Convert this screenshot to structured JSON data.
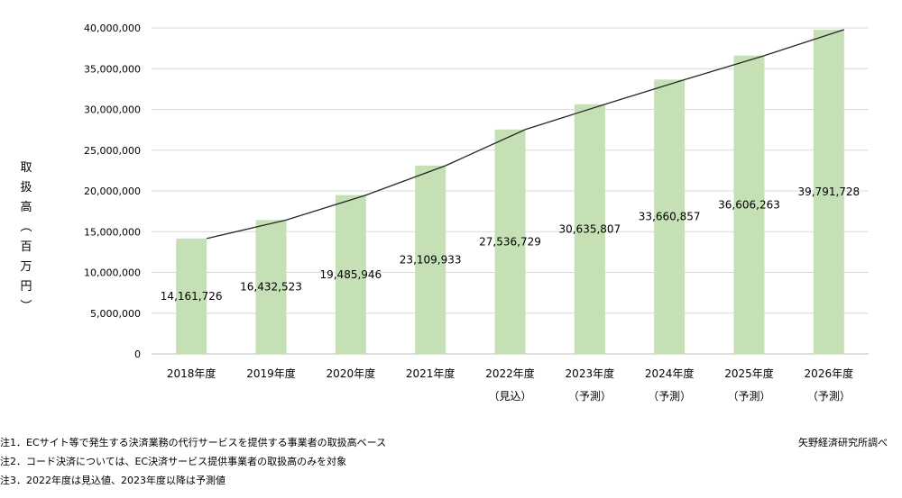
{
  "chart_data": {
    "type": "bar",
    "categories": [
      "2018年度",
      "2019年度",
      "2020年度",
      "2021年度",
      "2022年度",
      "2023年度",
      "2024年度",
      "2025年度",
      "2026年度"
    ],
    "category_sublabels": [
      "",
      "",
      "",
      "",
      "（見込）",
      "（予測）",
      "（予測）",
      "（予測）",
      "（予測）"
    ],
    "values": [
      14161726,
      16432523,
      19485946,
      23109933,
      27536729,
      30635807,
      33660857,
      36606263,
      39791728
    ],
    "value_labels": [
      "14,161,726",
      "16,432,523",
      "19,485,946",
      "23,109,933",
      "27,536,729",
      "30,635,807",
      "33,660,857",
      "36,606,263",
      "39,791,728"
    ],
    "ylim": [
      0,
      40000000
    ],
    "yticks": [
      "0",
      "5,000,000",
      "10,000,000",
      "15,000,000",
      "20,000,000",
      "25,000,000",
      "30,000,000",
      "35,000,000",
      "40,000,000"
    ],
    "ylabel": "取扱高（百万円）",
    "xlabel": "",
    "title": "",
    "grid": true,
    "trend_line": true,
    "bar_color": "#c5e0b4",
    "grid_color": "#d9d9d9"
  },
  "notes": [
    "注1．ECサイト等で発生する決済業務の代行サービスを提供する事業者の取扱高ベース",
    "注2．コード決済については、EC決済サービス提供事業者の取扱高のみを対象",
    "注3．2022年度は見込値、2023年度以降は予測値"
  ],
  "source": "矢野経済研究所調べ"
}
